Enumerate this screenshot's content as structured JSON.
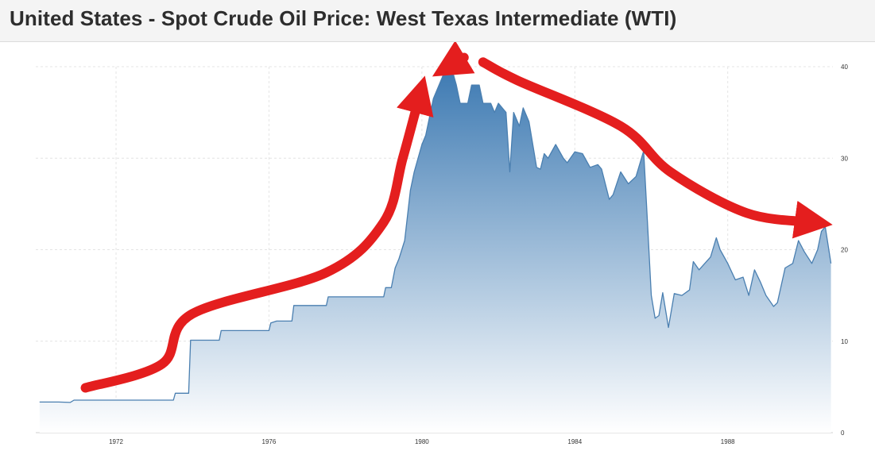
{
  "page": {
    "title": "United States - Spot Crude Oil Price: West Texas Intermediate (WTI)"
  },
  "chart_data": {
    "type": "area",
    "title": "United States - Spot Crude Oil Price: West Texas Intermediate (WTI)",
    "xlabel": "",
    "ylabel": "",
    "xlim": [
      1969.9,
      1990.75
    ],
    "ylim": [
      0,
      40
    ],
    "x_ticks": [
      "1972",
      "1976",
      "1980",
      "1984",
      "1988"
    ],
    "y_ticks": [
      "0",
      "10",
      "20",
      "30",
      "40"
    ],
    "y_axis_side": "right",
    "grid": true,
    "colors": {
      "line": "#4a7fb0",
      "fill_top": "#3f7bb3",
      "fill_bottom": "#ffffff",
      "annotation": "#e41e1e"
    },
    "series": [
      {
        "x": [
          1970.0,
          1970.5,
          1970.8,
          1970.9,
          1972.0,
          1973.0,
          1973.5,
          1973.55,
          1973.9,
          1973.95,
          1974.7,
          1974.75,
          1976.0,
          1976.05,
          1976.2,
          1976.6,
          1976.65,
          1977.5,
          1977.55,
          1979.0,
          1979.05,
          1979.2,
          1979.3,
          1979.4,
          1979.55,
          1979.7,
          1979.8,
          1980.0,
          1980.1,
          1980.3,
          1980.6,
          1980.8,
          1980.9,
          1981.0,
          1981.2,
          1981.3,
          1981.5,
          1981.6,
          1981.8,
          1981.9,
          1982.0,
          1982.2,
          1982.3,
          1982.4,
          1982.55,
          1982.65,
          1982.8,
          1983.0,
          1983.1,
          1983.2,
          1983.3,
          1983.5,
          1983.7,
          1983.8,
          1984.0,
          1984.2,
          1984.4,
          1984.6,
          1984.7,
          1984.9,
          1985.0,
          1985.2,
          1985.4,
          1985.6,
          1985.8,
          1985.9,
          1986.0,
          1986.1,
          1986.2,
          1986.3,
          1986.45,
          1986.6,
          1986.8,
          1987.0,
          1987.1,
          1987.25,
          1987.4,
          1987.55,
          1987.7,
          1987.8,
          1988.0,
          1988.2,
          1988.4,
          1988.55,
          1988.7,
          1988.85,
          1989.0,
          1989.2,
          1989.3,
          1989.5,
          1989.7,
          1989.85,
          1990.0,
          1990.2,
          1990.35,
          1990.45,
          1990.55,
          1990.7
        ],
        "values": [
          3.35,
          3.35,
          3.31,
          3.56,
          3.56,
          3.56,
          3.56,
          4.31,
          4.31,
          10.11,
          10.11,
          11.16,
          11.16,
          12.0,
          12.2,
          12.2,
          13.9,
          13.9,
          14.85,
          14.85,
          15.85,
          15.85,
          18.0,
          19.0,
          21.0,
          26.5,
          28.5,
          31.5,
          32.5,
          36.5,
          39.5,
          39.5,
          38.0,
          36.0,
          36.0,
          38.0,
          38.0,
          36.0,
          36.0,
          35.0,
          36.0,
          35.0,
          28.5,
          35.0,
          33.5,
          35.5,
          34.0,
          29.0,
          28.8,
          30.5,
          30.0,
          31.5,
          30.0,
          29.5,
          30.7,
          30.5,
          29.0,
          29.3,
          28.8,
          25.5,
          26.0,
          28.5,
          27.2,
          28.0,
          30.8,
          23.0,
          15.0,
          12.5,
          12.8,
          15.3,
          11.5,
          15.2,
          15.0,
          15.6,
          18.7,
          17.8,
          18.5,
          19.2,
          21.3,
          20.0,
          18.5,
          16.7,
          17.0,
          15.0,
          17.8,
          16.5,
          15.0,
          13.8,
          14.2,
          18.0,
          18.5,
          21.0,
          19.8,
          18.5,
          20.0,
          22.0,
          22.5,
          18.5
        ]
      }
    ],
    "annotations": [
      {
        "type": "rising-arrow",
        "points": [
          [
            1971.2,
            4.9
          ],
          [
            1973.2,
            7.5
          ],
          [
            1974.0,
            13.0
          ],
          [
            1977.5,
            17.5
          ],
          [
            1979.0,
            23.0
          ],
          [
            1979.5,
            30.0
          ],
          [
            1979.95,
            37.0
          ]
        ]
      },
      {
        "type": "peak-arrow",
        "points": [
          [
            1981.1,
            41.0
          ],
          [
            1980.7,
            40.0
          ]
        ]
      },
      {
        "type": "falling-arrow",
        "points": [
          [
            1981.6,
            40.5
          ],
          [
            1982.5,
            38.5
          ],
          [
            1985.2,
            33.5
          ],
          [
            1986.5,
            28.5
          ],
          [
            1988.5,
            24.0
          ],
          [
            1990.25,
            23.0
          ]
        ]
      }
    ]
  }
}
